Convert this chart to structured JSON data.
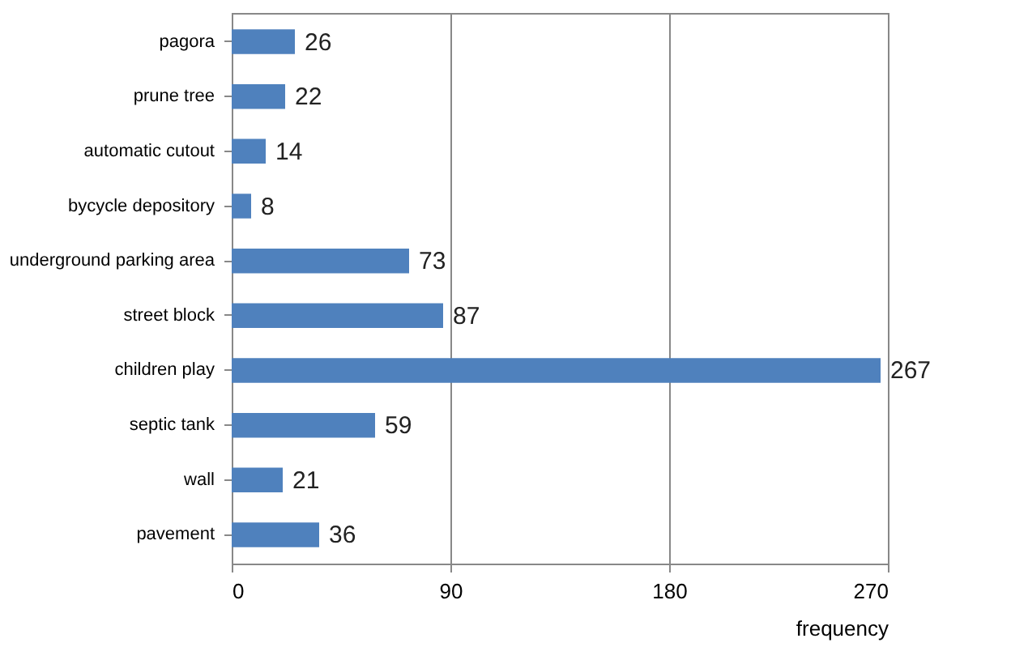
{
  "chart_data": {
    "type": "bar",
    "orientation": "horizontal",
    "categories": [
      "pagora",
      "prune tree",
      "automatic cutout",
      "bycycle depository",
      "underground parking area",
      "street block",
      "children play",
      "septic tank",
      "wall",
      "pavement"
    ],
    "values": [
      26,
      22,
      14,
      8,
      73,
      87,
      267,
      59,
      21,
      36
    ],
    "color": "#4f81bd",
    "xlim": [
      0,
      270
    ],
    "xticks": [
      0,
      90,
      180,
      270
    ],
    "grid": "x",
    "xlabel": "frequency",
    "data_labels": true
  }
}
